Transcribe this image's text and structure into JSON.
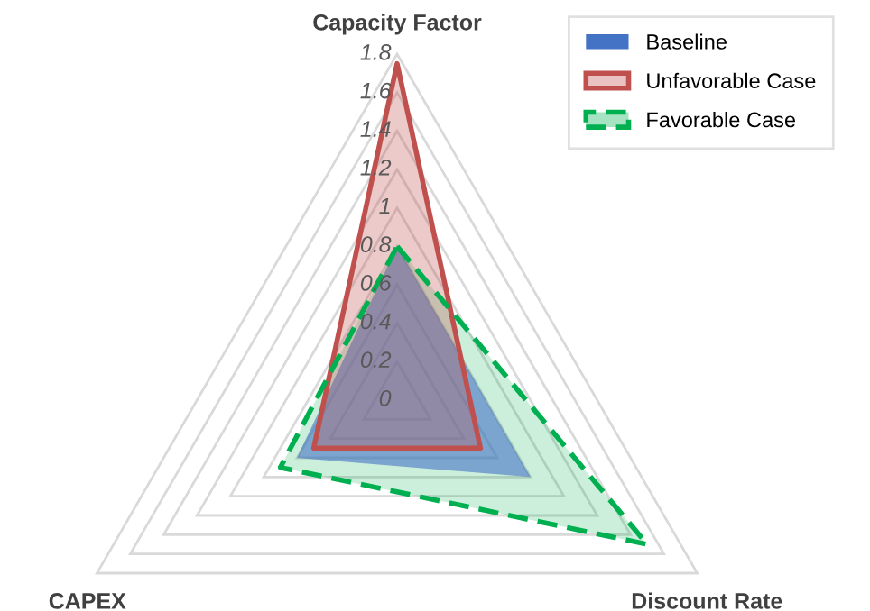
{
  "chart_data": {
    "type": "radar",
    "categories": [
      "Capacity Factor",
      "Discount Rate",
      "CAPEX"
    ],
    "series": [
      {
        "name": "Baseline",
        "color": "#4472c4",
        "values": [
          0.8,
          0.8,
          0.6
        ]
      },
      {
        "name": "Unfavorable Case",
        "color": "#c0504d",
        "values": [
          1.75,
          0.5,
          0.5
        ]
      },
      {
        "name": "Favorable Case",
        "color": "#00b050",
        "values": [
          0.8,
          1.5,
          0.7
        ],
        "line_style": "dashed"
      }
    ],
    "ylim": [
      0,
      1.8
    ],
    "yticks": [
      0,
      0.2,
      0.4,
      0.6,
      0.8,
      1,
      1.2,
      1.4,
      1.6,
      1.8
    ],
    "legend": "top right",
    "grid": true
  }
}
